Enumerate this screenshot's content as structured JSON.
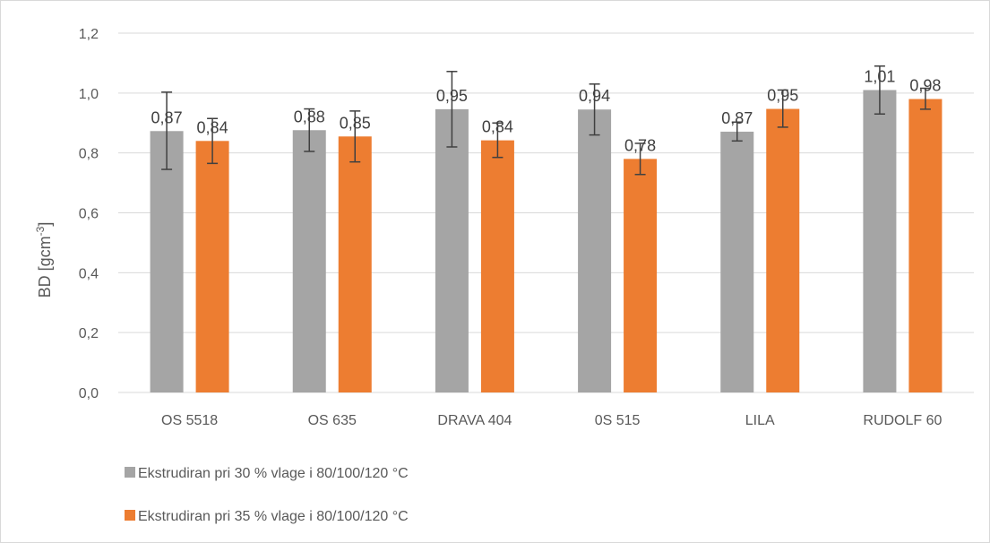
{
  "chart_data": {
    "type": "bar",
    "title": "",
    "xlabel": "",
    "ylabel": "BD [gcm",
    "ylabel_superscript": "-3",
    "ylabel_suffix": "]",
    "ylim": [
      0,
      1.2
    ],
    "y_ticks": [
      "0,0",
      "0,2",
      "0,4",
      "0,6",
      "0,8",
      "1,0",
      "1,2"
    ],
    "y_tick_values": [
      0,
      0.2,
      0.4,
      0.6,
      0.8,
      1.0,
      1.2
    ],
    "grid": true,
    "legend_position": "bottom-left",
    "categories": [
      "OS 5518",
      "OS 635",
      "DRAVA 404",
      "0S 515",
      "LILA",
      "RUDOLF 60"
    ],
    "series": [
      {
        "name": "Ekstrudiran pri 30 % vlage i 80/100/120 °C",
        "color": "#a5a5a5",
        "values": [
          0.873,
          0.876,
          0.946,
          0.945,
          0.871,
          1.01
        ],
        "labels": [
          "0,87",
          "0,88",
          "0,95",
          "0,94",
          "0,87",
          "1,01"
        ],
        "err_low": [
          0.745,
          0.805,
          0.82,
          0.86,
          0.84,
          0.93
        ],
        "err_high": [
          1.003,
          0.947,
          1.072,
          1.03,
          0.903,
          1.09
        ]
      },
      {
        "name": "Ekstrudiran pri 35 % vlage i 80/100/120 °C",
        "color": "#ed7d31",
        "values": [
          0.84,
          0.855,
          0.842,
          0.78,
          0.947,
          0.98
        ],
        "labels": [
          "0,84",
          "0,85",
          "0,84",
          "0,78",
          "0,95",
          "0,98"
        ],
        "err_low": [
          0.765,
          0.77,
          0.785,
          0.728,
          0.886,
          0.946
        ],
        "err_high": [
          0.915,
          0.94,
          0.9,
          0.832,
          1.01,
          1.016
        ]
      }
    ]
  }
}
